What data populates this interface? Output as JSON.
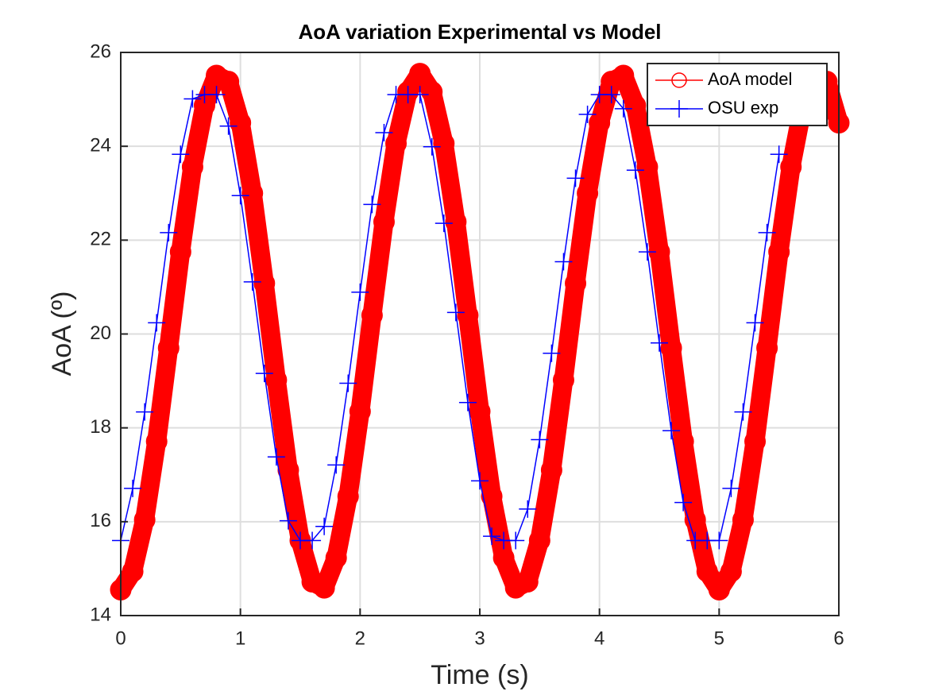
{
  "chart_data": {
    "type": "line",
    "title": "AoA variation Experimental vs Model",
    "x_label": "Time (s)",
    "y_label": "AoA (º)",
    "xlim": [
      0,
      6
    ],
    "xticks": [
      0,
      1,
      2,
      3,
      4,
      5,
      6
    ],
    "ylim": [
      14,
      26
    ],
    "yticks": [
      14,
      16,
      18,
      20,
      22,
      24,
      26
    ],
    "grid": true,
    "legend_position": "upper right",
    "series": [
      {
        "name": "AoA model",
        "color": "#ff0000",
        "marker": "circle",
        "x": [
          0,
          0.1,
          0.2,
          0.3,
          0.4,
          0.5,
          0.6,
          0.7,
          0.8,
          0.9,
          1,
          1.1,
          1.2,
          1.3,
          1.4,
          1.5,
          1.6,
          1.7,
          1.8,
          1.9,
          2,
          2.1,
          2.2,
          2.3,
          2.4,
          2.5,
          2.6,
          2.7,
          2.8,
          2.9,
          3,
          3.1,
          3.2,
          3.3,
          3.4,
          3.5,
          3.6,
          3.7,
          3.8,
          3.9,
          4,
          4.1,
          4.2,
          4.3,
          4.4,
          4.5,
          4.6,
          4.7,
          4.8,
          4.9,
          5,
          5.1,
          5.2,
          5.3,
          5.4,
          5.5,
          5.6,
          5.7,
          5.8,
          5.9,
          6
        ],
        "values": [
          14.55,
          14.94,
          16.04,
          17.71,
          19.7,
          21.75,
          23.56,
          24.87,
          25.51,
          25.38,
          24.5,
          23.0,
          21.08,
          19.02,
          17.1,
          15.6,
          14.72,
          14.59,
          15.23,
          16.54,
          18.35,
          20.4,
          22.39,
          24.06,
          25.16,
          25.55,
          25.16,
          24.06,
          22.39,
          20.4,
          18.35,
          16.54,
          15.23,
          14.59,
          14.72,
          15.6,
          17.1,
          19.02,
          21.08,
          23.0,
          24.5,
          25.38,
          25.51,
          24.87,
          23.56,
          21.75,
          19.7,
          17.71,
          16.04,
          14.94,
          14.55,
          14.94,
          16.04,
          17.71,
          19.7,
          21.75,
          23.56,
          24.87,
          25.51,
          25.38,
          24.5
        ]
      },
      {
        "name": "OSU exp",
        "color": "#0000ff",
        "marker": "plus",
        "x": [
          0,
          0.1,
          0.2,
          0.3,
          0.4,
          0.5,
          0.6,
          0.7,
          0.8,
          0.9,
          1,
          1.1,
          1.2,
          1.3,
          1.4,
          1.5,
          1.6,
          1.7,
          1.8,
          1.9,
          2,
          2.1,
          2.2,
          2.3,
          2.4,
          2.5,
          2.6,
          2.7,
          2.8,
          2.9,
          3,
          3.1,
          3.2,
          3.3,
          3.4,
          3.5,
          3.6,
          3.7,
          3.8,
          3.9,
          4,
          4.1,
          4.2,
          4.3,
          4.4,
          4.5,
          4.6,
          4.7,
          4.8,
          4.9,
          5,
          5.1,
          5.2,
          5.3,
          5.4,
          5.5
        ],
        "values": [
          15.6,
          16.71,
          18.34,
          20.24,
          22.16,
          23.83,
          25.01,
          25.1,
          25.1,
          24.43,
          22.95,
          21.11,
          19.16,
          17.38,
          16.02,
          15.6,
          15.6,
          15.9,
          17.21,
          18.95,
          20.89,
          22.76,
          24.29,
          25.1,
          25.1,
          25.1,
          23.99,
          22.36,
          20.46,
          18.54,
          16.87,
          15.69,
          15.6,
          15.6,
          16.27,
          17.75,
          19.59,
          21.54,
          23.32,
          24.68,
          25.1,
          25.1,
          24.8,
          23.49,
          21.75,
          19.81,
          17.94,
          16.41,
          15.6,
          15.6,
          15.6,
          16.71,
          18.34,
          20.24,
          22.16,
          23.83
        ]
      }
    ]
  }
}
